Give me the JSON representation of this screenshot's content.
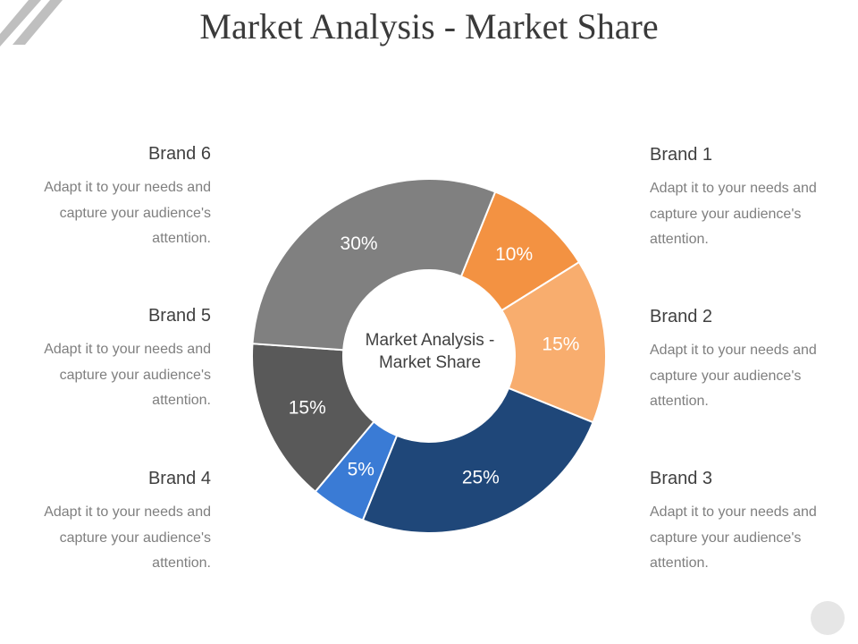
{
  "title": "Market Analysis - Market Share",
  "center_label": "Market Analysis - Market Share",
  "brands": [
    {
      "name": "Brand 1",
      "description": "Adapt it to your needs and capture your audience's attention."
    },
    {
      "name": "Brand 2",
      "description": "Adapt it to your needs and capture your audience's attention."
    },
    {
      "name": "Brand 3",
      "description": "Adapt it to your needs and capture your audience's attention."
    },
    {
      "name": "Brand 4",
      "description": "Adapt it to your needs and capture your audience's attention."
    },
    {
      "name": "Brand 5",
      "description": "Adapt it to your needs and capture your audience's attention."
    },
    {
      "name": "Brand 6",
      "description": "Adapt it to your needs and capture your audience's attention."
    }
  ],
  "chart_data": {
    "type": "pie",
    "variant": "donut",
    "title": "",
    "categories": [
      "Brand 1",
      "Brand 2",
      "Brand 3",
      "Brand 4",
      "Brand 5",
      "Brand 6"
    ],
    "values": [
      10,
      15,
      25,
      5,
      15,
      30
    ],
    "labels": [
      "10%",
      "15%",
      "25%",
      "5%",
      "15%",
      "30%"
    ],
    "colors": [
      "#f39242",
      "#f8ad6e",
      "#1f4779",
      "#3a7bd5",
      "#595959",
      "#808080"
    ],
    "start_angle_deg": 22,
    "direction": "clockwise",
    "legend": "none"
  }
}
